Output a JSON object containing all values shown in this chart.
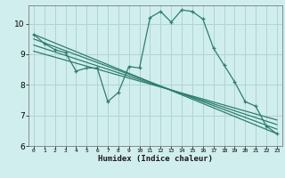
{
  "xlabel": "Humidex (Indice chaleur)",
  "ylabel": "",
  "background_color": "#d0eeed",
  "grid_color": "#b0d4d0",
  "line_color": "#2e7d6e",
  "xlim": [
    -0.5,
    23.5
  ],
  "ylim": [
    6,
    10.6
  ],
  "yticks": [
    6,
    7,
    8,
    9,
    10
  ],
  "xticks": [
    0,
    1,
    2,
    3,
    4,
    5,
    6,
    7,
    8,
    9,
    10,
    11,
    12,
    13,
    14,
    15,
    16,
    17,
    18,
    19,
    20,
    21,
    22,
    23
  ],
  "series": [
    {
      "x": [
        0,
        1,
        2,
        3,
        4,
        5,
        6,
        7,
        8,
        9,
        10,
        11,
        12,
        13,
        14,
        15,
        16,
        17,
        18,
        19,
        20,
        21,
        22,
        23
      ],
      "y": [
        9.65,
        9.35,
        9.15,
        9.05,
        8.45,
        8.55,
        8.55,
        7.45,
        7.75,
        8.6,
        8.55,
        10.2,
        10.4,
        10.05,
        10.45,
        10.4,
        10.15,
        9.2,
        8.65,
        8.1,
        7.45,
        7.3,
        6.65,
        6.4
      ],
      "marker": "+"
    },
    {
      "x": [
        0,
        23
      ],
      "y": [
        9.65,
        6.4
      ],
      "marker": null
    },
    {
      "x": [
        0,
        23
      ],
      "y": [
        9.5,
        6.55
      ],
      "marker": null
    },
    {
      "x": [
        0,
        23
      ],
      "y": [
        9.3,
        6.7
      ],
      "marker": null
    },
    {
      "x": [
        0,
        23
      ],
      "y": [
        9.1,
        6.85
      ],
      "marker": null
    }
  ]
}
